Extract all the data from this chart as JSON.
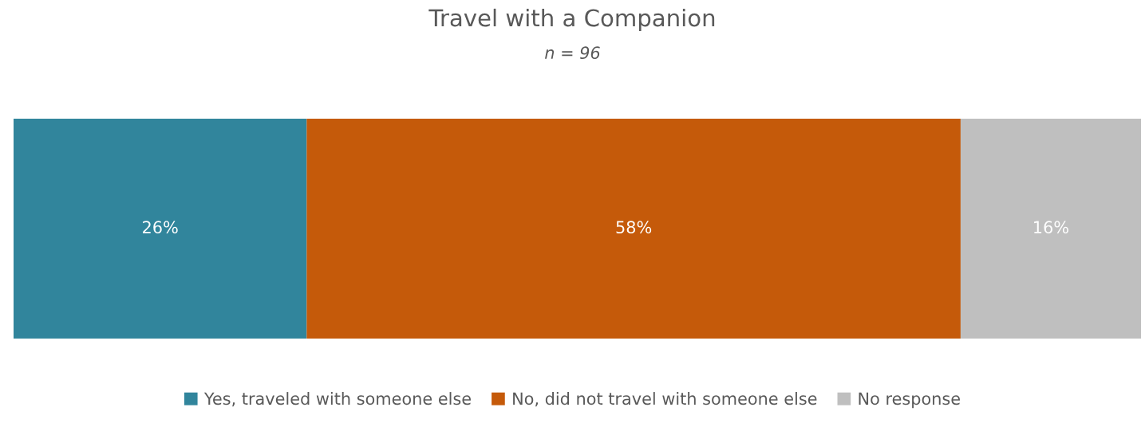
{
  "chart_data": {
    "type": "bar",
    "title": "Travel with a Companion",
    "subtitle": "n = 96",
    "orientation": "horizontal",
    "stacked": true,
    "categories": [
      null
    ],
    "series": [
      {
        "name": "Yes, traveled with someone else",
        "color": "#31859c",
        "values": [
          26
        ],
        "value_labels": [
          "26%"
        ]
      },
      {
        "name": "No, did not travel with someone else",
        "color": "#c55a0a",
        "values": [
          58
        ],
        "value_labels": [
          "58%"
        ]
      },
      {
        "name": "No response",
        "color": "#bfbfbf",
        "values": [
          16
        ],
        "value_labels": [
          "16%"
        ]
      }
    ],
    "xlim": [
      0,
      100
    ],
    "tick_labels": false,
    "grid": false,
    "legend": "bottom"
  }
}
